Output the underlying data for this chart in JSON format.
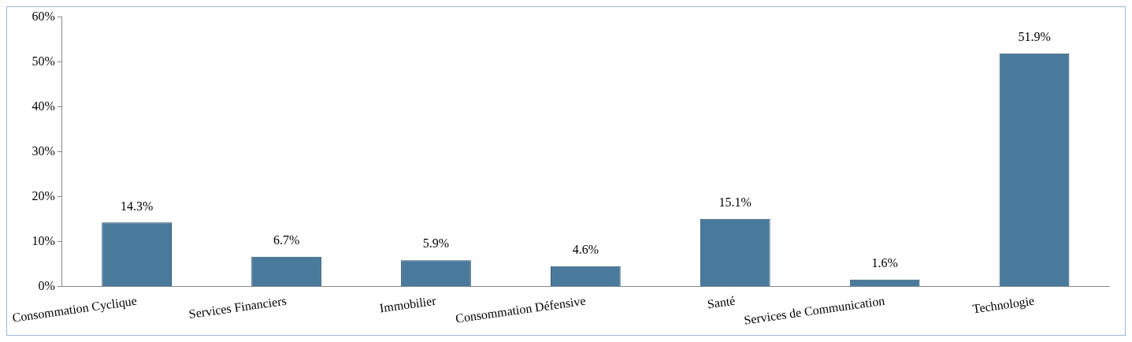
{
  "chart_data": {
    "type": "bar",
    "categories": [
      "Consommation Cyclique",
      "Services Financiers",
      "Immobilier",
      "Consommation Défensive",
      "Santé",
      "Services de Communication",
      "Technologie"
    ],
    "values": [
      14.3,
      6.7,
      5.9,
      4.6,
      15.1,
      1.6,
      51.9
    ],
    "value_labels": [
      "14.3%",
      "6.7%",
      "5.9%",
      "4.6%",
      "15.1%",
      "1.6%",
      "51.9%"
    ],
    "color": "#4a7a9b",
    "ylim": [
      0,
      60
    ],
    "yticks": [
      {
        "value": 0,
        "label": "0%"
      },
      {
        "value": 10,
        "label": "10%"
      },
      {
        "value": 20,
        "label": "20%"
      },
      {
        "value": 30,
        "label": "30%"
      },
      {
        "value": 40,
        "label": "40%"
      },
      {
        "value": 50,
        "label": "50%"
      },
      {
        "value": 60,
        "label": "60%"
      }
    ],
    "grid": false,
    "legend": false
  }
}
